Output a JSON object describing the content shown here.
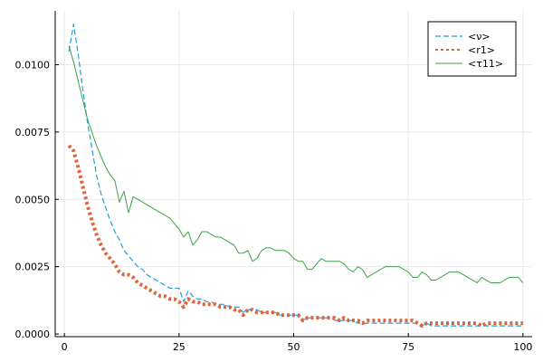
{
  "chart_data": {
    "type": "line",
    "title": "",
    "xlabel": "",
    "ylabel": "",
    "xlim": [
      -2,
      102
    ],
    "ylim": [
      -0.0001,
      0.012
    ],
    "x_ticks": [
      0,
      25,
      50,
      75,
      100
    ],
    "x_tick_labels": [
      "0",
      "25",
      "50",
      "75",
      "100"
    ],
    "y_ticks": [
      0.0,
      0.0025,
      0.005,
      0.0075,
      0.01
    ],
    "y_tick_labels": [
      "0.0000",
      "0.0025",
      "0.0050",
      "0.0075",
      "0.0100"
    ],
    "grid": true,
    "legend_position": "top-right",
    "series": [
      {
        "name": "<ν>",
        "color": "#1f9fe0",
        "style": "dashed",
        "x": [
          1,
          2,
          3,
          4,
          5,
          6,
          7,
          8,
          9,
          10,
          11,
          12,
          13,
          14,
          15,
          16,
          17,
          18,
          19,
          20,
          21,
          22,
          23,
          24,
          25,
          26,
          27,
          28,
          29,
          30,
          31,
          32,
          33,
          34,
          35,
          36,
          37,
          38,
          39,
          40,
          41,
          42,
          43,
          44,
          45,
          46,
          47,
          48,
          49,
          50,
          51,
          52,
          53,
          54,
          55,
          56,
          57,
          58,
          59,
          60,
          61,
          62,
          63,
          64,
          65,
          66,
          67,
          68,
          69,
          70,
          71,
          72,
          73,
          74,
          75,
          76,
          77,
          78,
          79,
          80,
          81,
          82,
          83,
          84,
          85,
          86,
          87,
          88,
          89,
          90,
          91,
          92,
          93,
          94,
          95,
          96,
          97,
          98,
          99,
          100
        ],
        "values": [
          0.0105,
          0.0115,
          0.0104,
          0.0091,
          0.0079,
          0.0069,
          0.0059,
          0.0052,
          0.0047,
          0.0042,
          0.0038,
          0.0035,
          0.0031,
          0.0029,
          0.0027,
          0.0025,
          0.0024,
          0.0022,
          0.0021,
          0.002,
          0.0019,
          0.0018,
          0.0017,
          0.0017,
          0.0017,
          0.0012,
          0.0016,
          0.0014,
          0.0013,
          0.0013,
          0.0012,
          0.0012,
          0.0011,
          0.0011,
          0.0011,
          0.001,
          0.001,
          0.001,
          0.0008,
          0.0009,
          0.0009,
          0.0009,
          0.0008,
          0.0008,
          0.0008,
          0.0008,
          0.0007,
          0.0007,
          0.0007,
          0.0007,
          0.0007,
          0.0005,
          0.0006,
          0.0006,
          0.0006,
          0.0006,
          0.0006,
          0.0006,
          0.0005,
          0.0005,
          0.0005,
          0.0005,
          0.0005,
          0.0004,
          0.0004,
          0.0004,
          0.0004,
          0.0004,
          0.0004,
          0.0004,
          0.0004,
          0.0004,
          0.0004,
          0.0004,
          0.0004,
          0.0004,
          0.0004,
          0.0003,
          0.0004,
          0.0003,
          0.0003,
          0.0003,
          0.0003,
          0.0003,
          0.0003,
          0.0003,
          0.0003,
          0.0003,
          0.0003,
          0.0003,
          0.0003,
          0.0003,
          0.0003,
          0.0003,
          0.0003,
          0.0003,
          0.0003,
          0.0003,
          0.0003,
          0.0003
        ]
      },
      {
        "name": "<r1>",
        "color": "#e0643a",
        "style": "dotted",
        "x": [
          1,
          2,
          3,
          4,
          5,
          6,
          7,
          8,
          9,
          10,
          11,
          12,
          13,
          14,
          15,
          16,
          17,
          18,
          19,
          20,
          21,
          22,
          23,
          24,
          25,
          26,
          27,
          28,
          29,
          30,
          31,
          32,
          33,
          34,
          35,
          36,
          37,
          38,
          39,
          40,
          41,
          42,
          43,
          44,
          45,
          46,
          47,
          48,
          49,
          50,
          51,
          52,
          53,
          54,
          55,
          56,
          57,
          58,
          59,
          60,
          61,
          62,
          63,
          64,
          65,
          66,
          67,
          68,
          69,
          70,
          71,
          72,
          73,
          74,
          75,
          76,
          77,
          78,
          79,
          80,
          81,
          82,
          83,
          84,
          85,
          86,
          87,
          88,
          89,
          90,
          91,
          92,
          93,
          94,
          95,
          96,
          97,
          98,
          99,
          100
        ],
        "values": [
          0.007,
          0.0068,
          0.0062,
          0.0055,
          0.0048,
          0.0042,
          0.0037,
          0.0033,
          0.003,
          0.0028,
          0.0026,
          0.0023,
          0.0022,
          0.0022,
          0.0021,
          0.0019,
          0.0018,
          0.0017,
          0.0016,
          0.0015,
          0.0014,
          0.0014,
          0.0013,
          0.0013,
          0.0012,
          0.001,
          0.0013,
          0.0012,
          0.0012,
          0.0011,
          0.0011,
          0.0011,
          0.0011,
          0.001,
          0.001,
          0.001,
          0.0009,
          0.0009,
          0.0007,
          0.0009,
          0.0009,
          0.0008,
          0.0008,
          0.0008,
          0.0008,
          0.0008,
          0.0007,
          0.0007,
          0.0007,
          0.0007,
          0.0007,
          0.0005,
          0.0006,
          0.0006,
          0.0006,
          0.0006,
          0.0006,
          0.0006,
          0.0006,
          0.0005,
          0.0006,
          0.0005,
          0.0005,
          0.0005,
          0.0004,
          0.0005,
          0.0005,
          0.0005,
          0.0005,
          0.0005,
          0.0005,
          0.0005,
          0.0005,
          0.0005,
          0.0005,
          0.0005,
          0.0004,
          0.0003,
          0.0004,
          0.0004,
          0.0004,
          0.0004,
          0.0004,
          0.0004,
          0.0004,
          0.0004,
          0.0004,
          0.0004,
          0.0004,
          0.0004,
          0.0003,
          0.0004,
          0.0004,
          0.0004,
          0.0004,
          0.0004,
          0.0004,
          0.0004,
          0.0004,
          0.0004
        ]
      },
      {
        "name": "<τ11>",
        "color": "#3ea145",
        "style": "solid",
        "x": [
          1,
          2,
          3,
          4,
          5,
          6,
          7,
          8,
          9,
          10,
          11,
          12,
          13,
          14,
          15,
          16,
          17,
          18,
          19,
          20,
          21,
          22,
          23,
          24,
          25,
          26,
          27,
          28,
          29,
          30,
          31,
          32,
          33,
          34,
          35,
          36,
          37,
          38,
          39,
          40,
          41,
          42,
          43,
          44,
          45,
          46,
          47,
          48,
          49,
          50,
          51,
          52,
          53,
          54,
          55,
          56,
          57,
          58,
          59,
          60,
          61,
          62,
          63,
          64,
          65,
          66,
          67,
          68,
          69,
          70,
          71,
          72,
          73,
          74,
          75,
          76,
          77,
          78,
          79,
          80,
          81,
          82,
          83,
          84,
          85,
          86,
          87,
          88,
          89,
          90,
          91,
          92,
          93,
          94,
          95,
          96,
          97,
          98,
          99,
          100
        ],
        "values": [
          0.0107,
          0.0101,
          0.0094,
          0.0087,
          0.008,
          0.0075,
          0.007,
          0.0066,
          0.0062,
          0.0059,
          0.0057,
          0.0049,
          0.0053,
          0.0045,
          0.0051,
          0.005,
          0.0049,
          0.0048,
          0.0047,
          0.0046,
          0.0045,
          0.0044,
          0.0043,
          0.0041,
          0.0039,
          0.0036,
          0.0038,
          0.0033,
          0.0035,
          0.0038,
          0.0038,
          0.0037,
          0.0036,
          0.0036,
          0.0035,
          0.0034,
          0.0033,
          0.003,
          0.003,
          0.0031,
          0.0027,
          0.0028,
          0.0031,
          0.0032,
          0.0032,
          0.0031,
          0.0031,
          0.0031,
          0.003,
          0.0028,
          0.0027,
          0.0027,
          0.0024,
          0.0024,
          0.0026,
          0.0028,
          0.0027,
          0.0027,
          0.0027,
          0.0027,
          0.0026,
          0.0024,
          0.0023,
          0.0025,
          0.0024,
          0.0021,
          0.0022,
          0.0023,
          0.0024,
          0.0025,
          0.0025,
          0.0025,
          0.0025,
          0.0024,
          0.0023,
          0.0021,
          0.0021,
          0.0023,
          0.0022,
          0.002,
          0.002,
          0.0021,
          0.0022,
          0.0023,
          0.0023,
          0.0023,
          0.0022,
          0.0021,
          0.002,
          0.0019,
          0.0021,
          0.002,
          0.0019,
          0.0019,
          0.0019,
          0.002,
          0.0021,
          0.0021,
          0.0021,
          0.0019
        ]
      }
    ]
  }
}
